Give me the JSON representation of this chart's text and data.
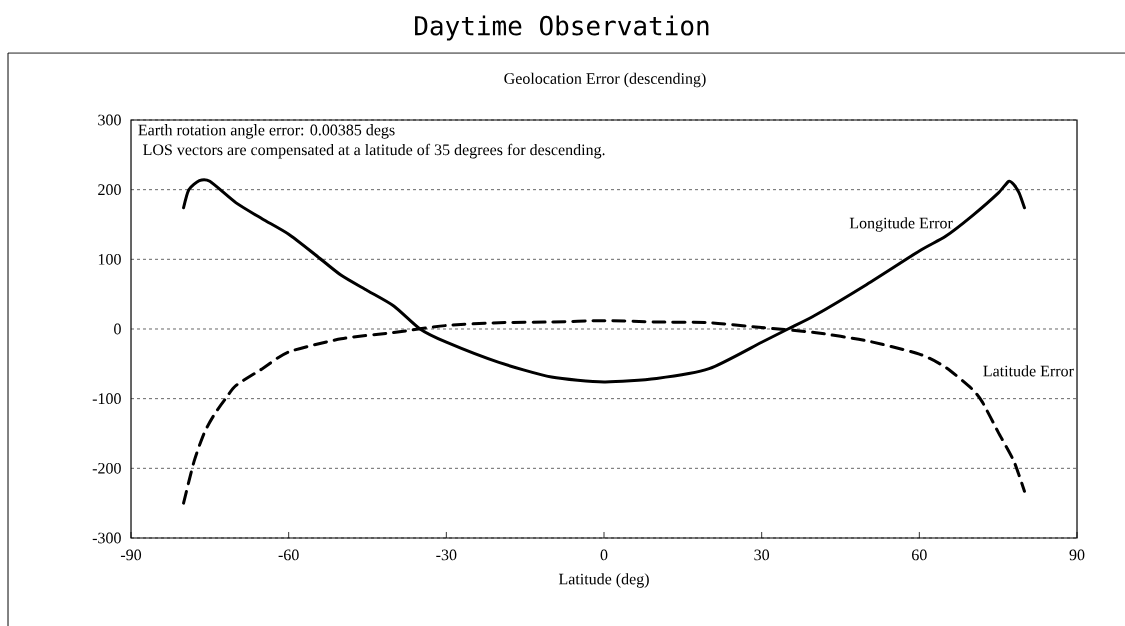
{
  "chart_data": {
    "type": "line",
    "title": "Daytime Observation",
    "subtitle": "Geolocation Error (descending)",
    "xlabel": "Latitude (deg)",
    "annotations": [
      "Earth rotation angle error: 0.00385 degs",
      "LOS vectors are compensated at a latitude of 35 degrees for descending."
    ],
    "xlim": [
      -90,
      90
    ],
    "xticks": [
      -90,
      -60,
      -30,
      0,
      30,
      60,
      90
    ],
    "ylim": [
      -300,
      300
    ],
    "yticks": [
      -300,
      -200,
      -100,
      0,
      100,
      200,
      300
    ],
    "grid": "y",
    "marker": "none",
    "series": [
      {
        "name": "Longitude Error",
        "color": "#000000",
        "line_style": "solid",
        "x": [
          -80,
          -79,
          -77,
          -75,
          -70,
          -65,
          -60,
          -55,
          -50,
          -45,
          -40,
          -35,
          -30,
          -20,
          -10,
          0,
          10,
          20,
          30,
          35,
          40,
          50,
          60,
          65,
          70,
          75,
          77,
          78,
          79,
          80
        ],
        "values": [
          174,
          200,
          213,
          212,
          181,
          158,
          136,
          107,
          77,
          55,
          33,
          0,
          -19,
          -48,
          -69,
          -76,
          -71,
          -57,
          -19,
          0,
          19,
          64,
          112,
          133,
          162,
          195,
          212,
          207,
          195,
          174
        ]
      },
      {
        "name": "Latitude Error",
        "color": "#000000",
        "line_style": "dashed",
        "x": [
          -80,
          -78,
          -76,
          -74,
          -72,
          -70,
          -65,
          -60,
          -50,
          -40,
          -30,
          -20,
          -10,
          0,
          10,
          20,
          30,
          40,
          50,
          60,
          65,
          70,
          72,
          75,
          78,
          80
        ],
        "values": [
          -250,
          -190,
          -148,
          -121,
          -100,
          -81,
          -57,
          -33,
          -14,
          -5,
          5,
          9,
          10,
          12,
          10,
          9,
          2,
          -5,
          -17,
          -36,
          -55,
          -86,
          -105,
          -148,
          -190,
          -233
        ]
      }
    ]
  }
}
